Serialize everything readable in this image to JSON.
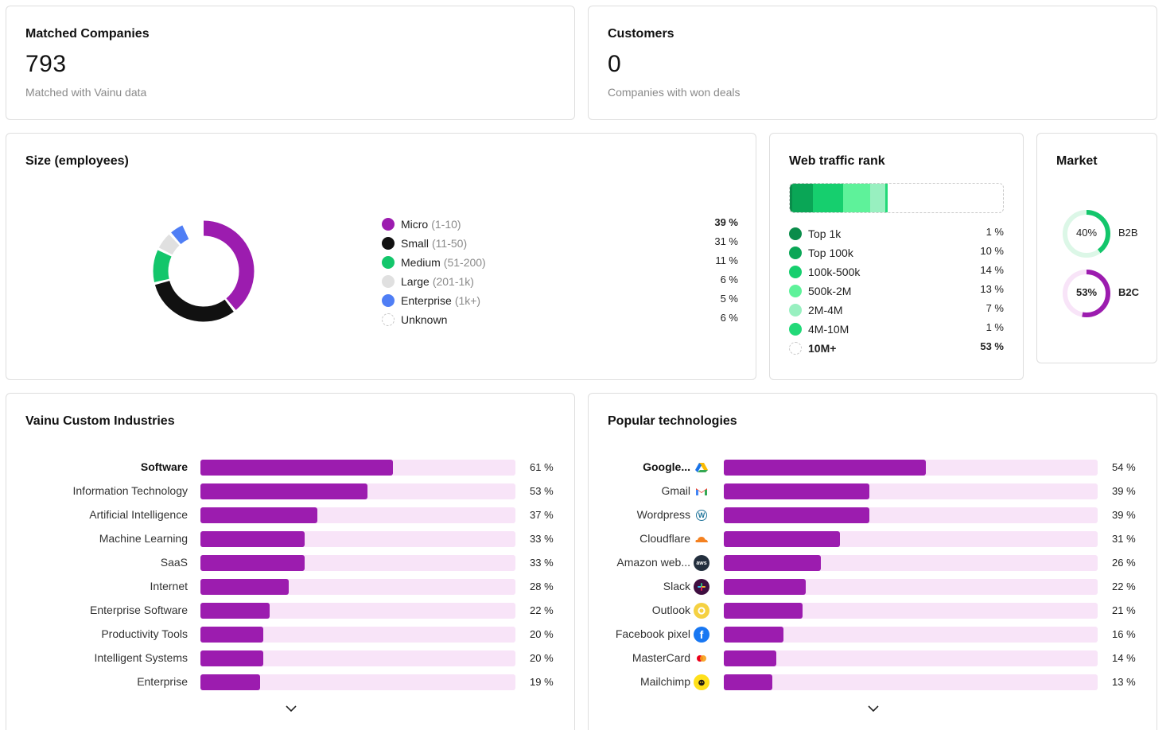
{
  "matched": {
    "title": "Matched Companies",
    "value": "793",
    "subtitle": "Matched with Vainu data"
  },
  "customers": {
    "title": "Customers",
    "value": "0",
    "subtitle": "Companies with won deals"
  },
  "size": {
    "title": "Size (employees)",
    "items": [
      {
        "label": "Micro",
        "range": "(1-10)",
        "pct": "39 %",
        "value": 39,
        "color": "#9c1caf",
        "bold": true
      },
      {
        "label": "Small",
        "range": "(11-50)",
        "pct": "31 %",
        "value": 31,
        "color": "#111111",
        "bold": false
      },
      {
        "label": "Medium",
        "range": "(51-200)",
        "pct": "11 %",
        "value": 11,
        "color": "#13c66b",
        "bold": false
      },
      {
        "label": "Large",
        "range": "(201-1k)",
        "pct": "6 %",
        "value": 6,
        "color": "#e0e0e0",
        "bold": false
      },
      {
        "label": "Enterprise",
        "range": "(1k+)",
        "pct": "5 %",
        "value": 5,
        "color": "#4f7ef5",
        "bold": false
      },
      {
        "label": "Unknown",
        "range": "",
        "pct": "6 %",
        "value": 6,
        "color": "dashed",
        "bold": false
      }
    ]
  },
  "web_traffic": {
    "title": "Web traffic rank",
    "items": [
      {
        "label": "Top 1k",
        "pct": "1 %",
        "value": 1,
        "color": "#0a8c4a",
        "bold": false
      },
      {
        "label": "Top 100k",
        "pct": "10 %",
        "value": 10,
        "color": "#0aa656",
        "bold": false
      },
      {
        "label": "100k-500k",
        "pct": "14 %",
        "value": 14,
        "color": "#16cf6e",
        "bold": false
      },
      {
        "label": "500k-2M",
        "pct": "13 %",
        "value": 13,
        "color": "#5ef29a",
        "bold": false
      },
      {
        "label": "2M-4M",
        "pct": "7 %",
        "value": 7,
        "color": "#98f0c0",
        "bold": false
      },
      {
        "label": "4M-10M",
        "pct": "1 %",
        "value": 1,
        "color": "#22d978",
        "bold": false
      },
      {
        "label": "10M+",
        "pct": "53 %",
        "value": 53,
        "color": "dashed",
        "bold": true
      }
    ]
  },
  "market": {
    "title": "Market",
    "items": [
      {
        "label": "B2B",
        "pct": "40%",
        "value": 40,
        "color": "#13c66b",
        "track": "#dcf7e7",
        "bold": false
      },
      {
        "label": "B2C",
        "pct": "53%",
        "value": 53,
        "color": "#9c1caf",
        "track": "#f8e4f8",
        "bold": true
      }
    ]
  },
  "industries": {
    "title": "Vainu Custom Industries",
    "items": [
      {
        "label": "Software",
        "pct": "61 %",
        "value": 61,
        "bold": true
      },
      {
        "label": "Information Technology",
        "pct": "53 %",
        "value": 53,
        "bold": false
      },
      {
        "label": "Artificial Intelligence",
        "pct": "37 %",
        "value": 37,
        "bold": false
      },
      {
        "label": "Machine Learning",
        "pct": "33 %",
        "value": 33,
        "bold": false
      },
      {
        "label": "SaaS",
        "pct": "33 %",
        "value": 33,
        "bold": false
      },
      {
        "label": "Internet",
        "pct": "28 %",
        "value": 28,
        "bold": false
      },
      {
        "label": "Enterprise Software",
        "pct": "22 %",
        "value": 22,
        "bold": false
      },
      {
        "label": "Productivity Tools",
        "pct": "20 %",
        "value": 20,
        "bold": false
      },
      {
        "label": "Intelligent Systems",
        "pct": "20 %",
        "value": 20,
        "bold": false
      },
      {
        "label": "Enterprise",
        "pct": "19 %",
        "value": 19,
        "bold": false
      }
    ]
  },
  "technologies": {
    "title": "Popular technologies",
    "items": [
      {
        "label": "Google...",
        "pct": "54 %",
        "value": 54,
        "bold": true,
        "icon": "google-drive-icon"
      },
      {
        "label": "Gmail",
        "pct": "39 %",
        "value": 39,
        "bold": false,
        "icon": "gmail-icon"
      },
      {
        "label": "Wordpress",
        "pct": "39 %",
        "value": 39,
        "bold": false,
        "icon": "wordpress-icon"
      },
      {
        "label": "Cloudflare",
        "pct": "31 %",
        "value": 31,
        "bold": false,
        "icon": "cloudflare-icon"
      },
      {
        "label": "Amazon web...",
        "pct": "26 %",
        "value": 26,
        "bold": false,
        "icon": "aws-icon",
        "icon_text": "aws"
      },
      {
        "label": "Slack",
        "pct": "22 %",
        "value": 22,
        "bold": false,
        "icon": "slack-icon"
      },
      {
        "label": "Outlook",
        "pct": "21 %",
        "value": 21,
        "bold": false,
        "icon": "outlook-icon"
      },
      {
        "label": "Facebook pixel",
        "pct": "16 %",
        "value": 16,
        "bold": false,
        "icon": "facebook-icon",
        "icon_text": "f"
      },
      {
        "label": "MasterCard",
        "pct": "14 %",
        "value": 14,
        "bold": false,
        "icon": "mastercard-icon"
      },
      {
        "label": "Mailchimp",
        "pct": "13 %",
        "value": 13,
        "bold": false,
        "icon": "mailchimp-icon"
      }
    ]
  }
}
